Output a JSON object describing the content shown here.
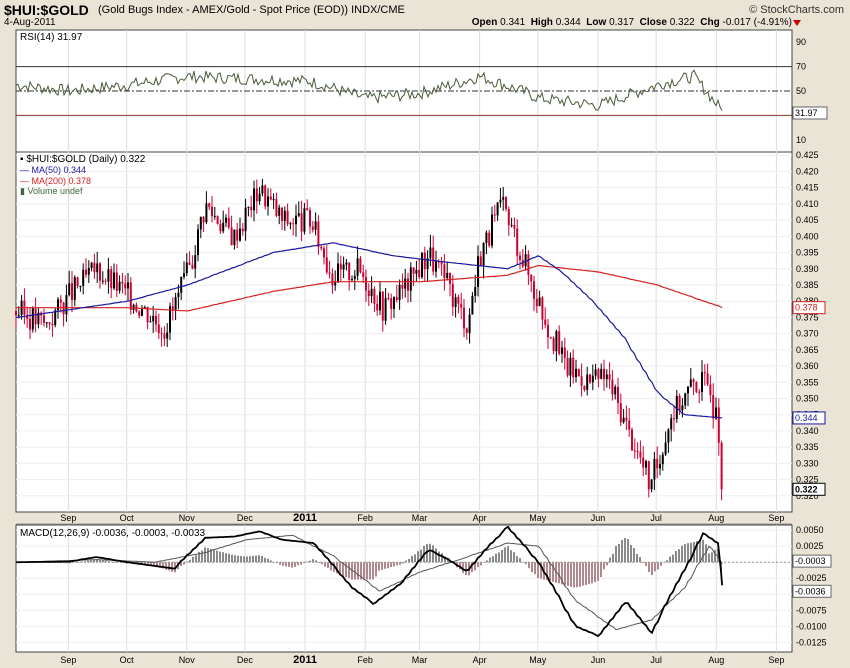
{
  "header": {
    "symbol": "$HUI:$GOLD",
    "description": "(Gold Bugs Index - AMEX/Gold - Spot Price (EOD)) INDX/CME",
    "date": "4-Aug-2011",
    "brand": "© StockCharts.com",
    "open_label": "Open",
    "open": "0.341",
    "high_label": "High",
    "high": "0.344",
    "low_label": "Low",
    "low": "0.317",
    "close_label": "Close",
    "close": "0.322",
    "chg_label": "Chg",
    "chg": "-0.017 (-4.91%)"
  },
  "colors": {
    "up": "#000000",
    "down": "#cc0033",
    "ma50": "#1a1aa0",
    "ma200": "#d62020",
    "rsi": "#4a5a3a",
    "hist_neg": "#b08890",
    "hist_pos": "#8a8a8a",
    "panel_bg": "#ffffff",
    "frame": "#e9e4d6"
  },
  "chart_data": [
    {
      "type": "line",
      "panel": "RSI",
      "label": "RSI(14) 31.97",
      "ylim": [
        0,
        100
      ],
      "ticks": [
        90,
        70,
        50,
        30,
        10
      ],
      "levels": [
        70,
        50,
        30
      ],
      "last_value_label": "31.97",
      "x": [
        "2010-08-05",
        "2010-09-01",
        "2010-10-01",
        "2010-11-01",
        "2010-12-01",
        "2011-01-03",
        "2011-02-01",
        "2011-03-01",
        "2011-04-01",
        "2011-05-02",
        "2011-06-01",
        "2011-07-01",
        "2011-07-20",
        "2011-08-04"
      ],
      "values": [
        55,
        50,
        55,
        62,
        60,
        58,
        44,
        48,
        62,
        44,
        38,
        55,
        62,
        31.97
      ]
    },
    {
      "type": "candlestick",
      "panel": "Price",
      "legend": [
        "$HUI:$GOLD (Daily) 0.322",
        "MA(50) 0.344",
        "MA(200) 0.378",
        "Volume undef"
      ],
      "ylim": [
        0.315,
        0.426
      ],
      "ticks": [
        "0.425",
        "0.420",
        "0.415",
        "0.410",
        "0.405",
        "0.400",
        "0.395",
        "0.390",
        "0.385",
        "0.380",
        "0.375",
        "0.370",
        "0.365",
        "0.360",
        "0.355",
        "0.350",
        "0.345",
        "0.340",
        "0.335",
        "0.330",
        "0.325",
        "0.320"
      ],
      "xlabels": [
        "Sep",
        "Oct",
        "Nov",
        "Dec",
        "2011",
        "Feb",
        "Mar",
        "Apr",
        "May",
        "Jun",
        "Jul",
        "Aug",
        "Sep"
      ],
      "close_anchors": [
        [
          "2010-08-05",
          0.377
        ],
        [
          "2010-08-20",
          0.373
        ],
        [
          "2010-09-01",
          0.382
        ],
        [
          "2010-09-15",
          0.39
        ],
        [
          "2010-10-01",
          0.382
        ],
        [
          "2010-10-20",
          0.372
        ],
        [
          "2010-11-01",
          0.388
        ],
        [
          "2010-11-10",
          0.41
        ],
        [
          "2010-11-25",
          0.4
        ],
        [
          "2010-12-08",
          0.415
        ],
        [
          "2010-12-20",
          0.405
        ],
        [
          "2011-01-03",
          0.405
        ],
        [
          "2011-01-15",
          0.388
        ],
        [
          "2011-01-28",
          0.39
        ],
        [
          "2011-02-10",
          0.378
        ],
        [
          "2011-02-22",
          0.385
        ],
        [
          "2011-03-05",
          0.395
        ],
        [
          "2011-03-15",
          0.385
        ],
        [
          "2011-03-25",
          0.373
        ],
        [
          "2011-04-01",
          0.395
        ],
        [
          "2011-04-12",
          0.41
        ],
        [
          "2011-04-25",
          0.39
        ],
        [
          "2011-05-04",
          0.375
        ],
        [
          "2011-05-15",
          0.36
        ],
        [
          "2011-05-28",
          0.355
        ],
        [
          "2011-06-05",
          0.357
        ],
        [
          "2011-06-15",
          0.342
        ],
        [
          "2011-06-28",
          0.323
        ],
        [
          "2011-07-08",
          0.345
        ],
        [
          "2011-07-20",
          0.355
        ],
        [
          "2011-07-28",
          0.355
        ],
        [
          "2011-08-01",
          0.34
        ],
        [
          "2011-08-03",
          0.339
        ],
        [
          "2011-08-04",
          0.322
        ]
      ],
      "ma50": [
        [
          "2010-08-05",
          0.375
        ],
        [
          "2010-10-01",
          0.38
        ],
        [
          "2010-11-01",
          0.385
        ],
        [
          "2010-12-15",
          0.395
        ],
        [
          "2011-01-15",
          0.398
        ],
        [
          "2011-02-15",
          0.394
        ],
        [
          "2011-03-15",
          0.392
        ],
        [
          "2011-04-15",
          0.39
        ],
        [
          "2011-05-01",
          0.394
        ],
        [
          "2011-05-15",
          0.388
        ],
        [
          "2011-06-01",
          0.378
        ],
        [
          "2011-06-15",
          0.368
        ],
        [
          "2011-07-01",
          0.352
        ],
        [
          "2011-07-15",
          0.345
        ],
        [
          "2011-08-04",
          0.344
        ]
      ],
      "ma200": [
        [
          "2010-08-05",
          0.378
        ],
        [
          "2010-10-01",
          0.378
        ],
        [
          "2010-11-01",
          0.377
        ],
        [
          "2010-12-15",
          0.383
        ],
        [
          "2011-01-15",
          0.386
        ],
        [
          "2011-03-01",
          0.386
        ],
        [
          "2011-04-15",
          0.388
        ],
        [
          "2011-05-01",
          0.391
        ],
        [
          "2011-06-01",
          0.389
        ],
        [
          "2011-07-01",
          0.385
        ],
        [
          "2011-08-04",
          0.378
        ]
      ],
      "last_labels": {
        "ma200": "0.378",
        "ma50": "0.344",
        "close": "0.322"
      }
    },
    {
      "type": "line",
      "panel": "MACD",
      "label": "MACD(12,26,9) -0.0036, -0.0003, -0.0033",
      "ylim": [
        -0.014,
        0.0058
      ],
      "ticks": [
        "0.0050",
        "0.0025",
        "0.0000",
        "-0.0025",
        "-0.0050",
        "-0.0075",
        "-0.0100",
        "-0.0125"
      ],
      "last_labels": {
        "signal": "-0.0003",
        "macd": "-0.0036"
      },
      "macd": [
        [
          "2010-08-05",
          0.0
        ],
        [
          "2010-09-01",
          0.0001
        ],
        [
          "2010-09-15",
          0.0008
        ],
        [
          "2010-10-01",
          0.0
        ],
        [
          "2010-10-25",
          -0.001
        ],
        [
          "2010-11-10",
          0.0038
        ],
        [
          "2010-11-25",
          0.004
        ],
        [
          "2010-12-08",
          0.0048
        ],
        [
          "2010-12-20",
          0.0035
        ],
        [
          "2011-01-05",
          0.003
        ],
        [
          "2011-01-25",
          -0.004
        ],
        [
          "2011-02-05",
          -0.0065
        ],
        [
          "2011-02-20",
          -0.003
        ],
        [
          "2011-03-05",
          0.002
        ],
        [
          "2011-03-15",
          0.0005
        ],
        [
          "2011-03-25",
          -0.0015
        ],
        [
          "2011-04-05",
          0.0025
        ],
        [
          "2011-04-15",
          0.0055
        ],
        [
          "2011-05-01",
          0.0
        ],
        [
          "2011-05-20",
          -0.01
        ],
        [
          "2011-06-01",
          -0.0115
        ],
        [
          "2011-06-15",
          -0.006
        ],
        [
          "2011-06-28",
          -0.011
        ],
        [
          "2011-07-10",
          -0.004
        ],
        [
          "2011-07-25",
          0.0045
        ],
        [
          "2011-08-01",
          0.003
        ],
        [
          "2011-08-04",
          -0.0036
        ]
      ],
      "signal": [
        [
          "2010-08-05",
          0.0
        ],
        [
          "2010-09-15",
          0.0004
        ],
        [
          "2010-10-15",
          0.0
        ],
        [
          "2010-11-10",
          0.0015
        ],
        [
          "2010-12-01",
          0.0035
        ],
        [
          "2010-12-25",
          0.0042
        ],
        [
          "2011-01-15",
          0.001
        ],
        [
          "2011-02-08",
          -0.0045
        ],
        [
          "2011-03-01",
          -0.0015
        ],
        [
          "2011-03-20",
          0.0003
        ],
        [
          "2011-04-15",
          0.003
        ],
        [
          "2011-05-01",
          0.0025
        ],
        [
          "2011-05-20",
          -0.006
        ],
        [
          "2011-06-10",
          -0.0105
        ],
        [
          "2011-06-28",
          -0.009
        ],
        [
          "2011-07-15",
          -0.004
        ],
        [
          "2011-07-28",
          0.0025
        ],
        [
          "2011-08-04",
          -0.0003
        ]
      ]
    }
  ]
}
